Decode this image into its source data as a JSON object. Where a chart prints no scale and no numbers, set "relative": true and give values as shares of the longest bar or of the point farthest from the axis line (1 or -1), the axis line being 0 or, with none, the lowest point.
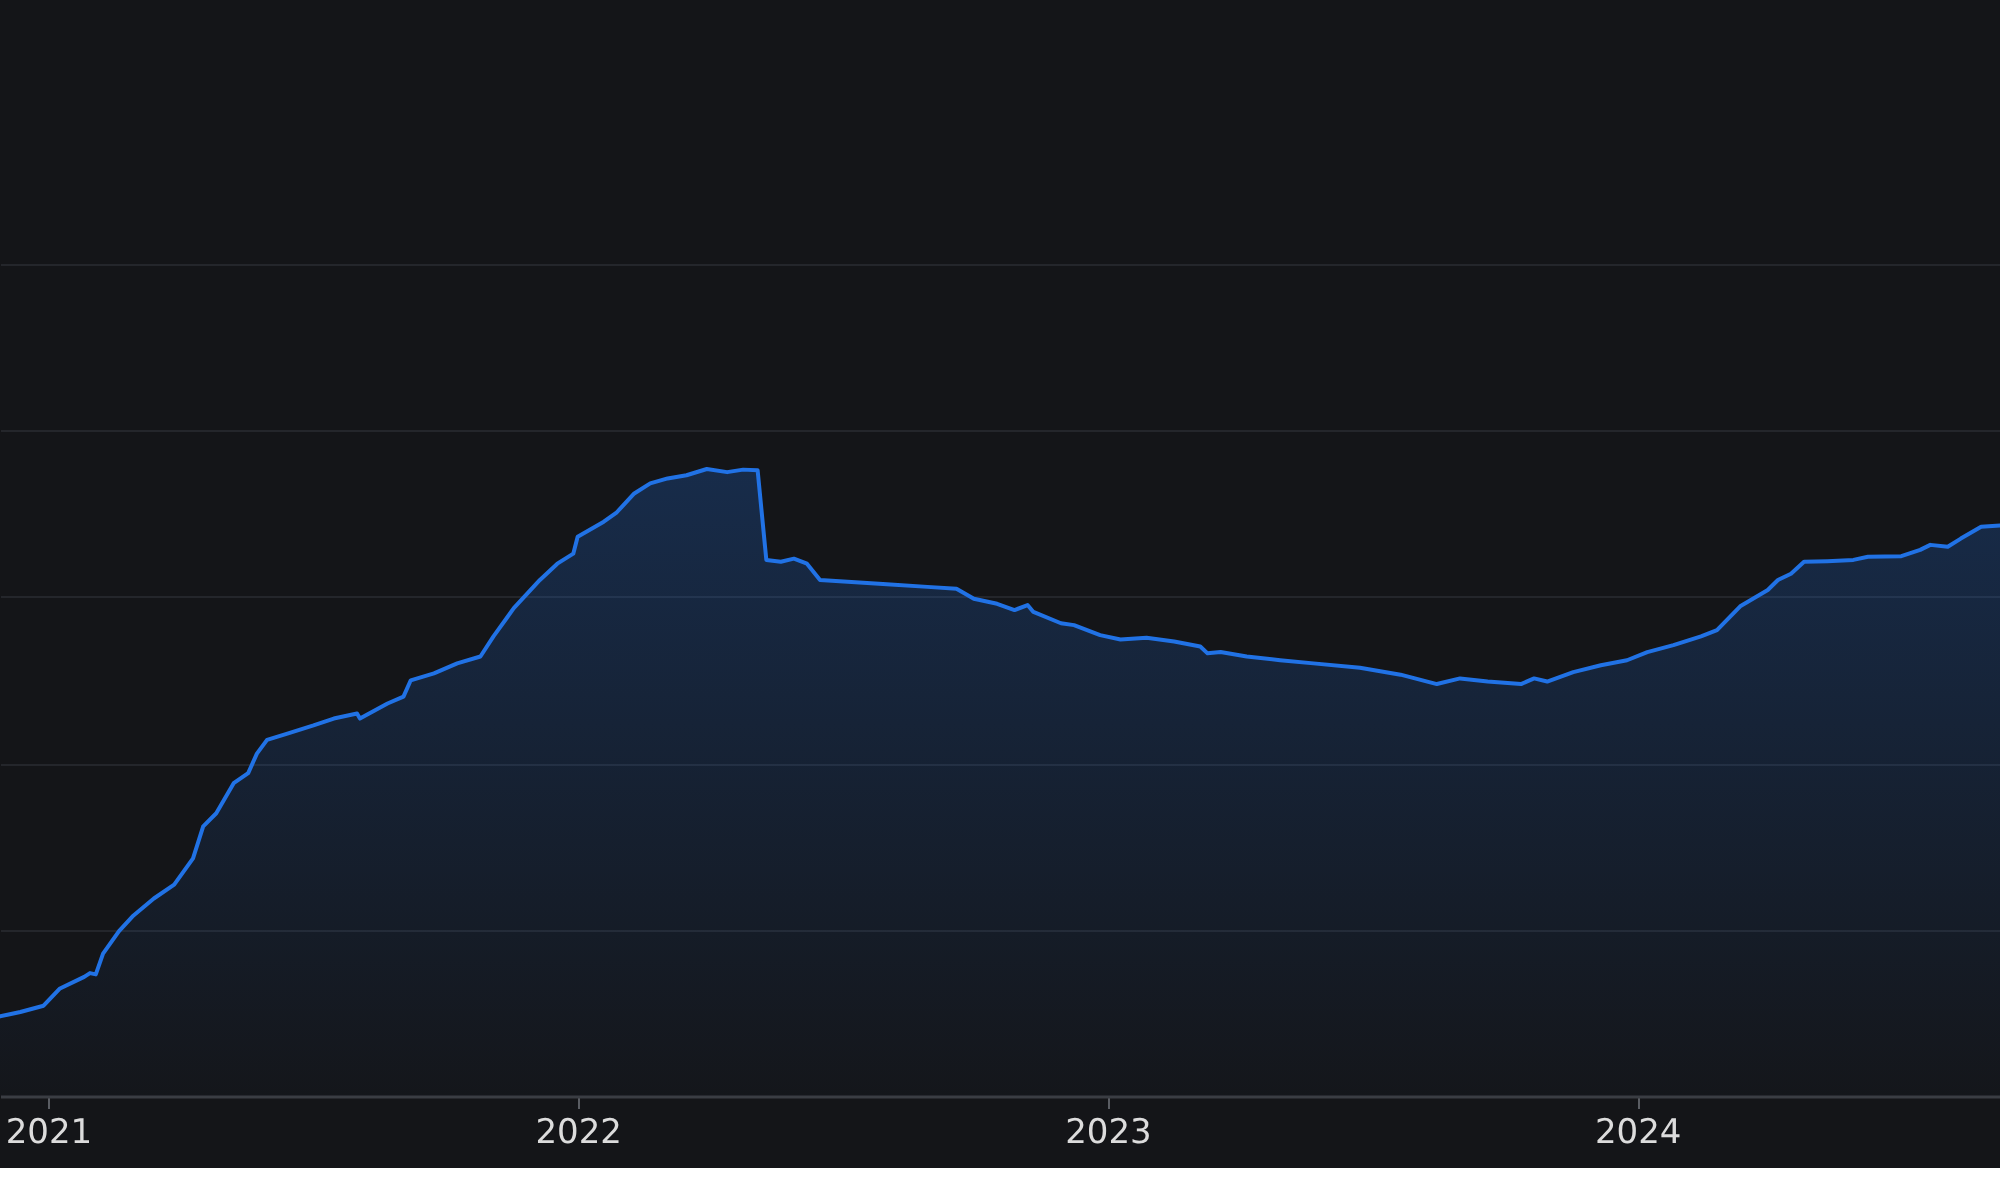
{
  "chart_data": {
    "type": "area",
    "relative": true,
    "grid": "y",
    "tick_labels": "x",
    "xlim": [
      "2020-11-29",
      "2024-09-07"
    ],
    "xticks": [
      "2021",
      "2022",
      "2023",
      "2024"
    ],
    "x": [
      "2020-11-29",
      "2020-12-13",
      "2020-12-29",
      "2021-01-09",
      "2021-01-26",
      "2021-01-30",
      "2021-02-03",
      "2021-02-08",
      "2021-02-19",
      "2021-03-01",
      "2021-03-15",
      "2021-03-29",
      "2021-04-11",
      "2021-04-18",
      "2021-04-27",
      "2021-05-09",
      "2021-05-19",
      "2021-05-25",
      "2021-06-01",
      "2021-06-15",
      "2021-07-03",
      "2021-07-17",
      "2021-08-02",
      "2021-08-04",
      "2021-08-23",
      "2021-09-03",
      "2021-09-08",
      "2021-09-24",
      "2021-10-10",
      "2021-10-26",
      "2021-11-04",
      "2021-11-18",
      "2021-12-06",
      "2021-12-18",
      "2021-12-29",
      "2022-01-01",
      "2022-01-19",
      "2022-01-28",
      "2022-02-09",
      "2022-02-20",
      "2022-03-04",
      "2022-03-17",
      "2022-03-31",
      "2022-04-14",
      "2022-04-25",
      "2022-05-05",
      "2022-05-11",
      "2022-05-21",
      "2022-05-30",
      "2022-06-08",
      "2022-06-17",
      "2022-07-06",
      "2022-08-02",
      "2022-08-30",
      "2022-09-19",
      "2022-10-01",
      "2022-10-17",
      "2022-10-29",
      "2022-11-07",
      "2022-11-11",
      "2022-11-30",
      "2022-12-09",
      "2022-12-27",
      "2023-01-10",
      "2023-01-28",
      "2023-02-16",
      "2023-03-06",
      "2023-03-11",
      "2023-03-20",
      "2023-04-07",
      "2023-04-30",
      "2023-05-23",
      "2023-06-24",
      "2023-07-22",
      "2023-08-16",
      "2023-09-01",
      "2023-09-20",
      "2023-10-13",
      "2023-10-22",
      "2023-10-31",
      "2023-11-18",
      "2023-12-07",
      "2023-12-25",
      "2024-01-08",
      "2024-01-26",
      "2024-02-14",
      "2024-02-25",
      "2024-03-12",
      "2024-03-31",
      "2024-04-07",
      "2024-04-16",
      "2024-04-25",
      "2024-05-11",
      "2024-05-29",
      "2024-06-08",
      "2024-07-01",
      "2024-07-14",
      "2024-07-21",
      "2024-08-02",
      "2024-08-11",
      "2024-08-25",
      "2024-09-07"
    ],
    "series": [
      {
        "color": "#2172e5",
        "values": [
          0.127,
          0.134,
          0.144,
          0.171,
          0.19,
          0.196,
          0.194,
          0.227,
          0.263,
          0.288,
          0.315,
          0.337,
          0.379,
          0.43,
          0.451,
          0.499,
          0.515,
          0.546,
          0.568,
          0.578,
          0.591,
          0.602,
          0.61,
          0.602,
          0.626,
          0.637,
          0.663,
          0.674,
          0.69,
          0.701,
          0.733,
          0.778,
          0.823,
          0.849,
          0.865,
          0.892,
          0.916,
          0.931,
          0.961,
          0.977,
          0.985,
          0.99,
          1.0,
          0.995,
          0.999,
          0.998,
          0.855,
          0.852,
          0.857,
          0.849,
          0.823,
          0.82,
          0.816,
          0.812,
          0.809,
          0.793,
          0.785,
          0.775,
          0.783,
          0.772,
          0.754,
          0.751,
          0.735,
          0.728,
          0.731,
          0.725,
          0.717,
          0.706,
          0.708,
          0.701,
          0.695,
          0.69,
          0.683,
          0.672,
          0.657,
          0.666,
          0.661,
          0.657,
          0.666,
          0.661,
          0.676,
          0.687,
          0.695,
          0.708,
          0.719,
          0.733,
          0.743,
          0.781,
          0.807,
          0.823,
          0.833,
          0.852,
          0.853,
          0.855,
          0.86,
          0.861,
          0.871,
          0.879,
          0.876,
          0.889,
          0.908,
          0.91
        ]
      }
    ]
  }
}
